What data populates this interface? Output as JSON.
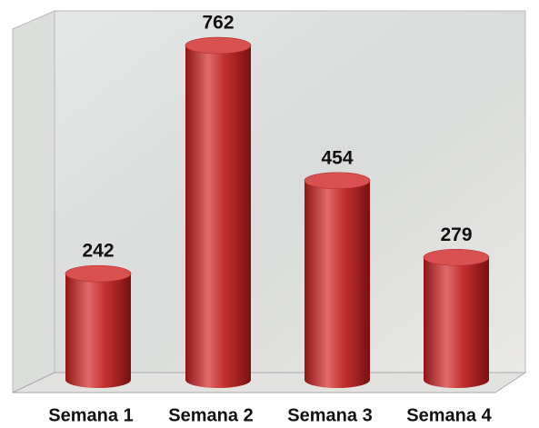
{
  "chart_data": {
    "type": "bar",
    "categories": [
      "Semana 1",
      "Semana 2",
      "Semana 3",
      "Semana 4"
    ],
    "values": [
      242,
      762,
      454,
      279
    ],
    "color": "#c0302f"
  }
}
